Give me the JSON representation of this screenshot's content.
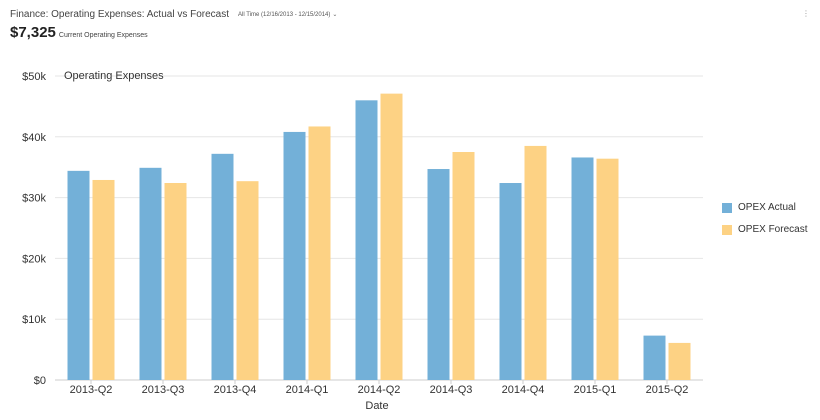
{
  "header": {
    "title": "Finance: Operating Expenses: Actual vs Forecast",
    "date_range": "All Time (12/16/2013 - 12/15/2014)",
    "menu_icon": "kebab-menu-icon",
    "dropdown_icon": "chevron-down-icon"
  },
  "kpi": {
    "value": "$7,325",
    "label": "Current Operating Expenses"
  },
  "colors": {
    "actual": "#73b0d8",
    "forecast": "#fdd284",
    "grid": "#e6e6e6",
    "axis": "#cccccc"
  },
  "chart_data": {
    "type": "bar",
    "title": "Operating Expenses",
    "xlabel": "Date",
    "ylabel": "",
    "categories": [
      "2013-Q2",
      "2013-Q3",
      "2013-Q4",
      "2014-Q1",
      "2014-Q2",
      "2014-Q3",
      "2014-Q4",
      "2015-Q1",
      "2015-Q2"
    ],
    "series": [
      {
        "name": "OPEX Actual",
        "values": [
          34400,
          34900,
          37200,
          40800,
          46000,
          34700,
          32400,
          36600,
          7300
        ]
      },
      {
        "name": "OPEX Forecast",
        "values": [
          32900,
          32400,
          32700,
          41700,
          47100,
          37500,
          38500,
          36400,
          6100
        ]
      }
    ],
    "ylim": [
      0,
      50000
    ],
    "yticks": [
      0,
      10000,
      20000,
      30000,
      40000,
      50000
    ],
    "ytick_labels": [
      "$0",
      "$10k",
      "$20k",
      "$30k",
      "$40k",
      "$50k"
    ],
    "grid": true,
    "legend": "right"
  }
}
